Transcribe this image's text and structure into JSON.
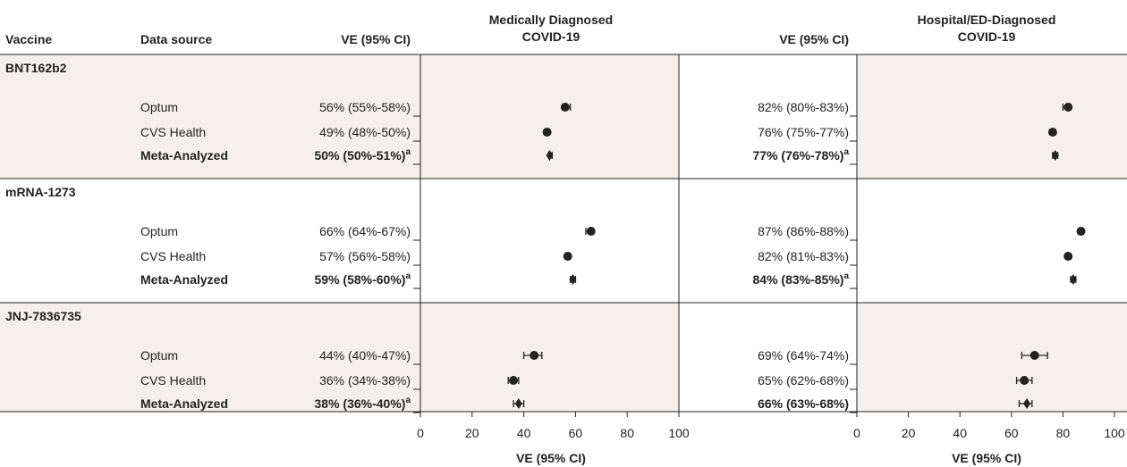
{
  "colors": {
    "panel_bg": "#f6f0ec",
    "line": "#222222",
    "text": "#222222"
  },
  "headers": {
    "vaccine": "Vaccine",
    "data_source": "Data source",
    "ve_left": "VE (95% CI)",
    "ve_right": "VE (95% CI)",
    "panel_left_title": [
      "Medically Diagnosed",
      "COVID-19"
    ],
    "panel_right_title": [
      "Hospital/ED-Diagnosed",
      "COVID-19"
    ]
  },
  "x_axis": {
    "ticks": [
      0,
      20,
      40,
      60,
      80,
      100
    ],
    "label_left": "VE (95% CI)",
    "label_right": "VE (95% CI)"
  },
  "chart_data": {
    "type": "forest",
    "xlim": [
      0,
      100
    ],
    "groups": [
      {
        "vaccine": "BNT162b2",
        "rows": [
          {
            "source": "Optum",
            "bold": false,
            "md_text": "56% (55%-58%)",
            "md": [
              56,
              55,
              58
            ],
            "md_sup": "",
            "hosp_text": "82% (80%-83%)",
            "hosp": [
              82,
              80,
              83
            ],
            "hosp_sup": ""
          },
          {
            "source": "CVS Health",
            "bold": false,
            "md_text": "49% (48%-50%)",
            "md": [
              49,
              48,
              50
            ],
            "md_sup": "",
            "hosp_text": "76% (75%-77%)",
            "hosp": [
              76,
              75,
              77
            ],
            "hosp_sup": ""
          },
          {
            "source": "Meta-Analyzed",
            "bold": true,
            "md_text": "50% (50%-51%)",
            "md": [
              50,
              50,
              51
            ],
            "md_sup": "a",
            "hosp_text": "77% (76%-78%)",
            "hosp": [
              77,
              76,
              78
            ],
            "hosp_sup": "a"
          }
        ]
      },
      {
        "vaccine": "mRNA-1273",
        "rows": [
          {
            "source": "Optum",
            "bold": false,
            "md_text": "66% (64%-67%)",
            "md": [
              66,
              64,
              67
            ],
            "md_sup": "",
            "hosp_text": "87% (86%-88%)",
            "hosp": [
              87,
              86,
              88
            ],
            "hosp_sup": ""
          },
          {
            "source": "CVS Health",
            "bold": false,
            "md_text": "57% (56%-58%)",
            "md": [
              57,
              56,
              58
            ],
            "md_sup": "",
            "hosp_text": "82% (81%-83%)",
            "hosp": [
              82,
              81,
              83
            ],
            "hosp_sup": ""
          },
          {
            "source": "Meta-Analyzed",
            "bold": true,
            "md_text": "59% (58%-60%)",
            "md": [
              59,
              58,
              60
            ],
            "md_sup": "a",
            "hosp_text": "84% (83%-85%)",
            "hosp": [
              84,
              83,
              85
            ],
            "hosp_sup": "a"
          }
        ]
      },
      {
        "vaccine": "JNJ-7836735",
        "rows": [
          {
            "source": "Optum",
            "bold": false,
            "md_text": "44% (40%-47%)",
            "md": [
              44,
              40,
              47
            ],
            "md_sup": "",
            "hosp_text": "69% (64%-74%)",
            "hosp": [
              69,
              64,
              74
            ],
            "hosp_sup": ""
          },
          {
            "source": "CVS Health",
            "bold": false,
            "md_text": "36% (34%-38%)",
            "md": [
              36,
              34,
              38
            ],
            "md_sup": "",
            "hosp_text": "65% (62%-68%)",
            "hosp": [
              65,
              62,
              68
            ],
            "hosp_sup": ""
          },
          {
            "source": "Meta-Analyzed",
            "bold": true,
            "md_text": "38% (36%-40%)",
            "md": [
              38,
              36,
              40
            ],
            "md_sup": "a",
            "hosp_text": "66% (63%-68%)",
            "hosp": [
              66,
              63,
              68
            ],
            "hosp_sup": ""
          }
        ]
      }
    ]
  }
}
